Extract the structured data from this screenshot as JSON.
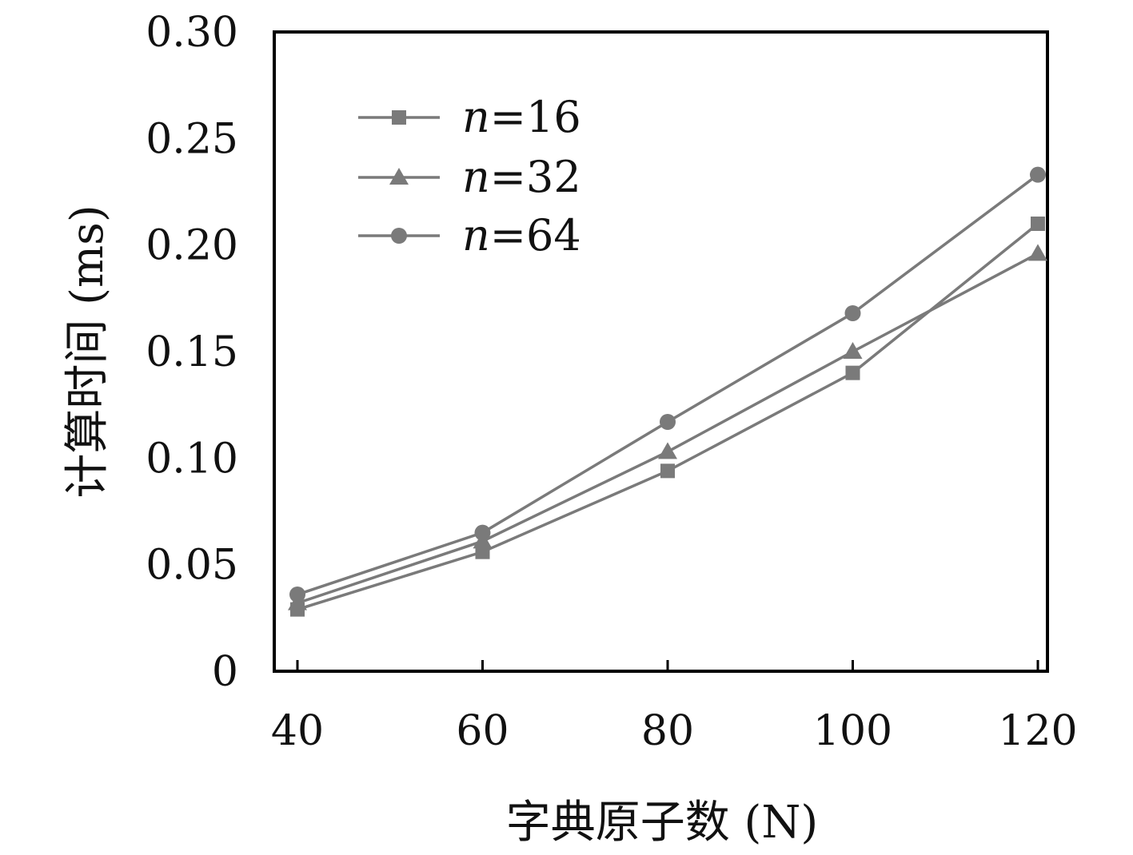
{
  "chart_data": {
    "type": "line",
    "xlabel": "字典原子数 (N)",
    "ylabel": "计算时间 (ms)",
    "x": [
      40,
      60,
      80,
      100,
      120
    ],
    "xlim": [
      40,
      120
    ],
    "ylim": [
      0,
      0.3
    ],
    "xticks": [
      "40",
      "60",
      "80",
      "100",
      "120"
    ],
    "yticks": [
      "0",
      "0.05",
      "0.10",
      "0.15",
      "0.20",
      "0.25",
      "0.30"
    ],
    "grid": false,
    "legend_position": "top-left",
    "line_color": "#7a7a7a",
    "series": [
      {
        "name": "n=16",
        "marker": "square",
        "values": [
          0.029,
          0.056,
          0.094,
          0.14,
          0.21
        ]
      },
      {
        "name": "n=32",
        "marker": "triangle",
        "values": [
          0.032,
          0.061,
          0.103,
          0.15,
          0.196
        ]
      },
      {
        "name": "n=64",
        "marker": "circle",
        "values": [
          0.036,
          0.065,
          0.117,
          0.168,
          0.233
        ]
      }
    ]
  }
}
